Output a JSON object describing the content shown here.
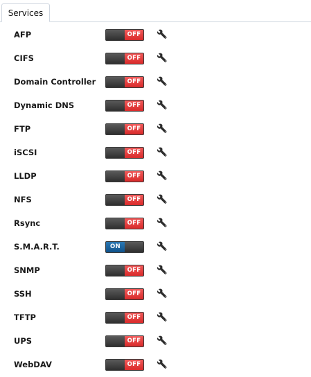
{
  "tabs": [
    {
      "label": "Services"
    }
  ],
  "colors": {
    "off": "#e03434",
    "on": "#135a94",
    "track": "#3a3a3a"
  },
  "services": [
    {
      "name": "AFP",
      "state": "off",
      "label": "OFF"
    },
    {
      "name": "CIFS",
      "state": "off",
      "label": "OFF"
    },
    {
      "name": "Domain Controller",
      "state": "off",
      "label": "OFF"
    },
    {
      "name": "Dynamic DNS",
      "state": "off",
      "label": "OFF"
    },
    {
      "name": "FTP",
      "state": "off",
      "label": "OFF"
    },
    {
      "name": "iSCSI",
      "state": "off",
      "label": "OFF"
    },
    {
      "name": "LLDP",
      "state": "off",
      "label": "OFF"
    },
    {
      "name": "NFS",
      "state": "off",
      "label": "OFF"
    },
    {
      "name": "Rsync",
      "state": "off",
      "label": "OFF"
    },
    {
      "name": "S.M.A.R.T.",
      "state": "on",
      "label": "ON"
    },
    {
      "name": "SNMP",
      "state": "off",
      "label": "OFF"
    },
    {
      "name": "SSH",
      "state": "off",
      "label": "OFF"
    },
    {
      "name": "TFTP",
      "state": "off",
      "label": "OFF"
    },
    {
      "name": "UPS",
      "state": "off",
      "label": "OFF"
    },
    {
      "name": "WebDAV",
      "state": "off",
      "label": "OFF"
    }
  ],
  "icons": {
    "settings": "wrench-icon"
  }
}
